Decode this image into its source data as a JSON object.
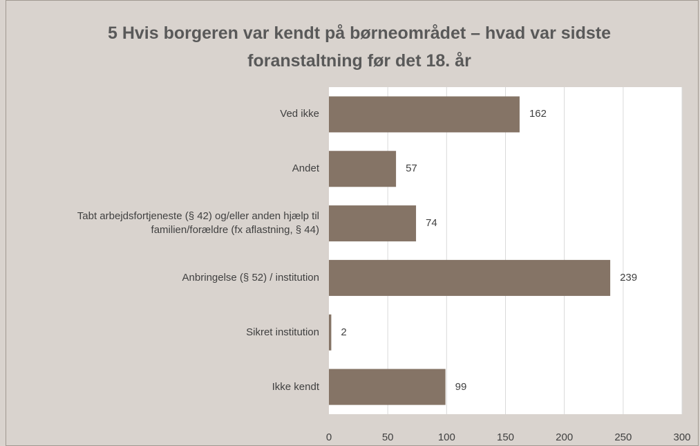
{
  "chart_data": {
    "type": "barh",
    "title": "5 Hvis borgeren var kendt på børneområdet – hvad var sidste foranstaltning før det 18. år",
    "categories": [
      "Ved ikke",
      "Andet",
      "Tabt arbejdsfortjeneste (§ 42) og/eller anden hjælp til familien/forældre (fx aflastning, § 44)",
      "Anbringelse (§ 52) / institution",
      "Sikret institution",
      "Ikke kendt"
    ],
    "values": [
      162,
      57,
      74,
      239,
      2,
      99
    ],
    "color": "#857466",
    "xlim": [
      0,
      300
    ],
    "xticks": [
      0,
      50,
      100,
      150,
      200,
      250,
      300
    ],
    "grid": true
  }
}
